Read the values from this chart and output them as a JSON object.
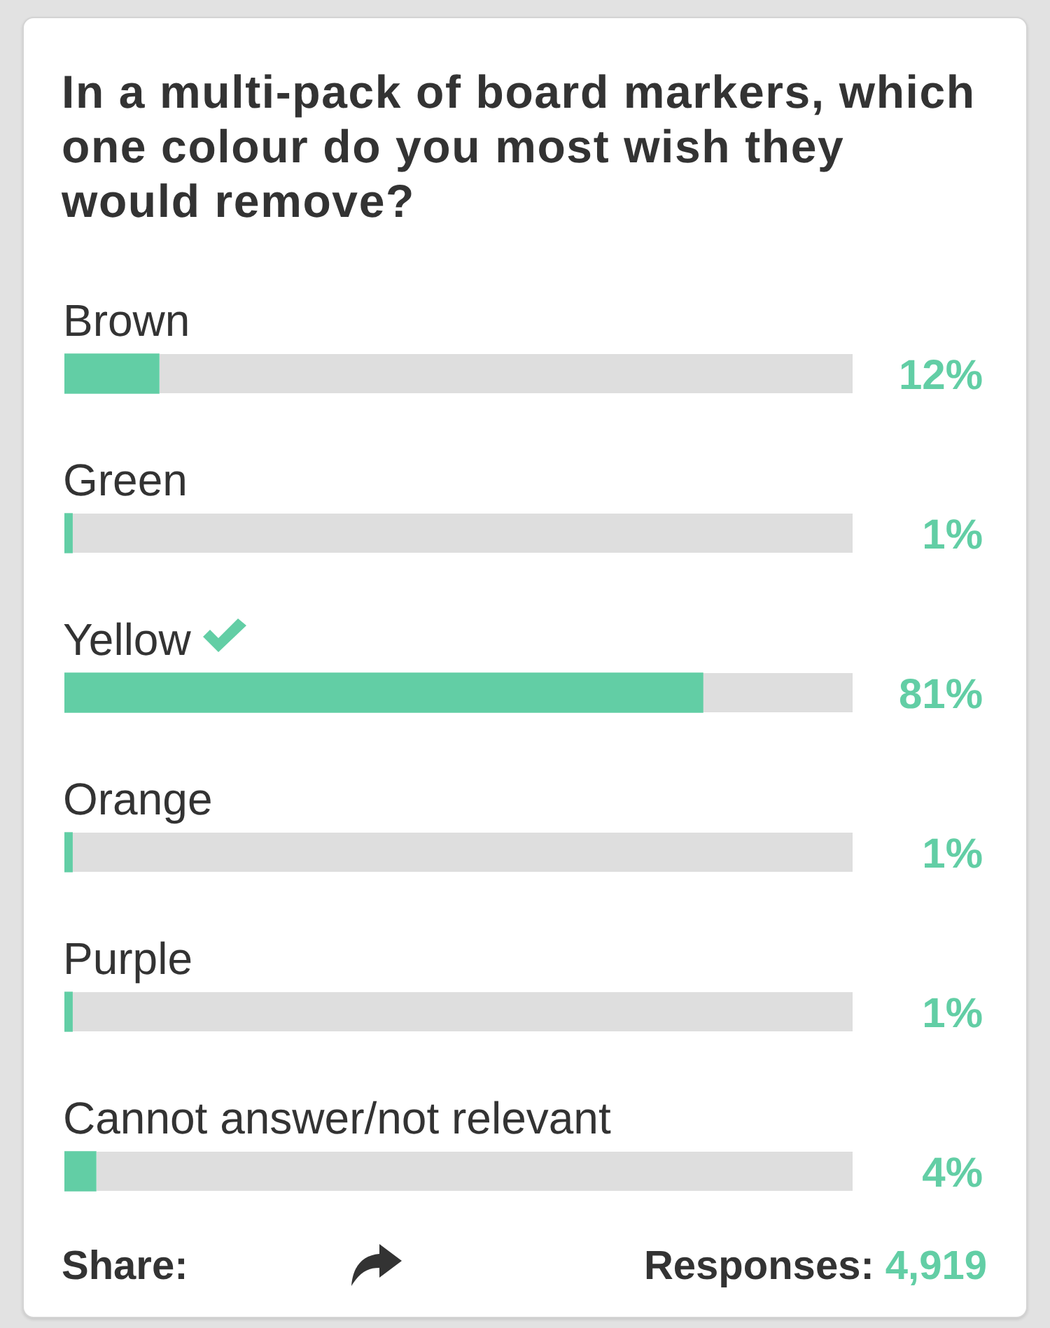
{
  "chart_data": {
    "type": "bar",
    "orientation": "horizontal",
    "title": "In a multi-pack of board markers, which one colour do you most wish they would remove?",
    "categories": [
      "Brown",
      "Green",
      "Yellow",
      "Orange",
      "Purple",
      "Cannot answer/not relevant"
    ],
    "values": [
      12,
      1,
      81,
      1,
      1,
      4
    ],
    "color": "#62cea5",
    "xlim": [
      0,
      100
    ],
    "value_labels": [
      "12%",
      "1%",
      "81%",
      "1%",
      "1%",
      "4%"
    ],
    "tick_labels": "y",
    "annotations": [
      "Share:",
      "Responses: 4,919"
    ]
  }
}
